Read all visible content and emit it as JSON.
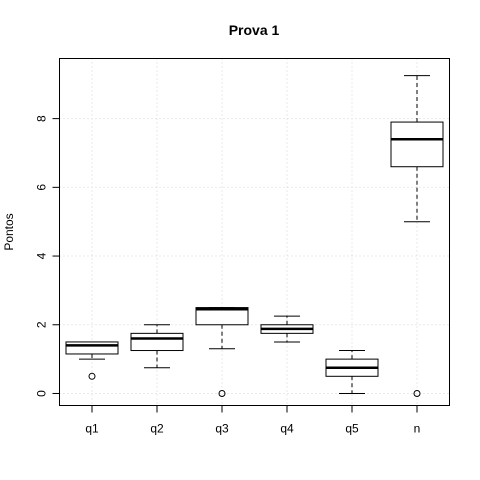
{
  "chart_data": {
    "type": "boxplot",
    "title": "Prova 1",
    "xlabel": "",
    "ylabel": "Pontos",
    "ylim": [
      -0.35,
      9.75
    ],
    "yticks": [
      0,
      2,
      4,
      6,
      8
    ],
    "grid": true,
    "categories": [
      "q1",
      "q2",
      "q3",
      "q4",
      "q5",
      "n"
    ],
    "boxes": [
      {
        "name": "q1",
        "whisker_low": 1.0,
        "q1": 1.15,
        "median": 1.4,
        "q3": 1.5,
        "whisker_high": 1.5,
        "outliers": [
          0.5
        ]
      },
      {
        "name": "q2",
        "whisker_low": 0.75,
        "q1": 1.25,
        "median": 1.6,
        "q3": 1.75,
        "whisker_high": 2.0,
        "outliers": []
      },
      {
        "name": "q3",
        "whisker_low": 1.3,
        "q1": 2.0,
        "median": 2.45,
        "q3": 2.5,
        "whisker_high": 2.5,
        "outliers": [
          0.0
        ]
      },
      {
        "name": "q4",
        "whisker_low": 1.5,
        "q1": 1.75,
        "median": 1.88,
        "q3": 2.0,
        "whisker_high": 2.25,
        "outliers": []
      },
      {
        "name": "q5",
        "whisker_low": 0.0,
        "q1": 0.5,
        "median": 0.75,
        "q3": 1.0,
        "whisker_high": 1.25,
        "outliers": []
      },
      {
        "name": "n",
        "whisker_low": 5.0,
        "q1": 6.6,
        "median": 7.4,
        "q3": 7.9,
        "whisker_high": 9.25,
        "outliers": [
          0.0
        ]
      }
    ]
  }
}
